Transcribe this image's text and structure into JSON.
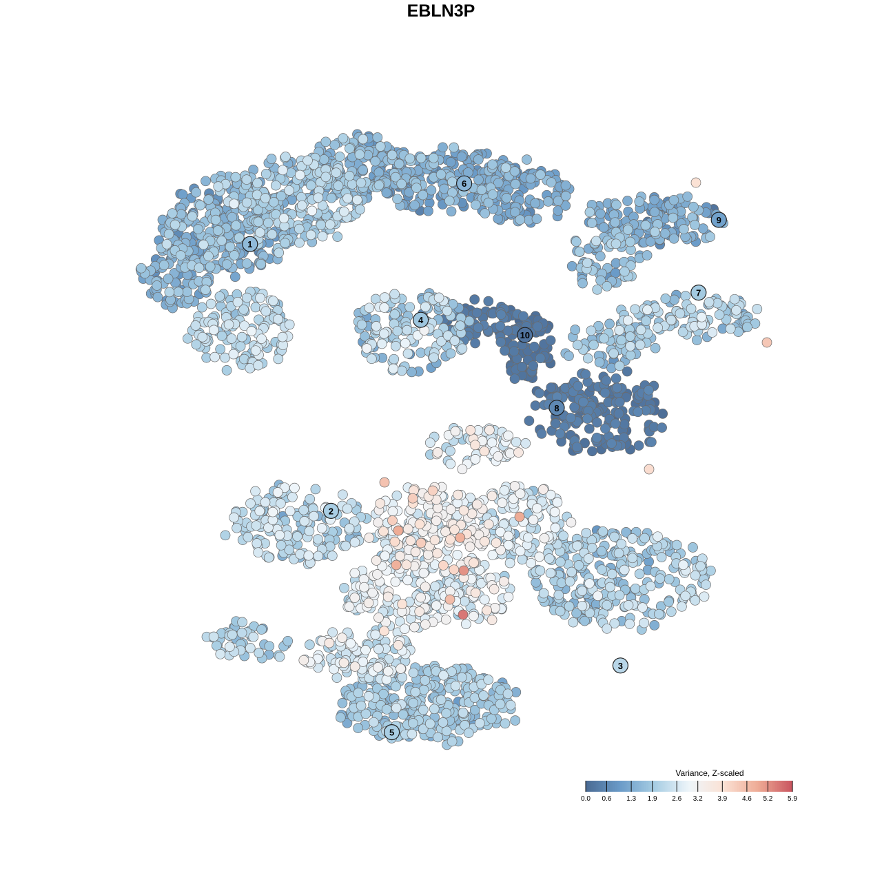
{
  "chart_data": {
    "type": "scatter",
    "title": "EBLN3P",
    "colorbar": {
      "title": "Variance, Z-scaled",
      "ticks": [
        "0.0",
        "0.6",
        "1.3",
        "1.9",
        "2.6",
        "3.2",
        "3.9",
        "4.6",
        "5.2",
        "5.9"
      ],
      "range": [
        0.0,
        5.9
      ],
      "colors": [
        "#4a6a93",
        "#6a9bc8",
        "#a7cde3",
        "#eef5fa",
        "#fbe1d4",
        "#eeab95",
        "#c9545f"
      ],
      "placement": "bottom-right"
    },
    "clusters": [
      {
        "label": "1",
        "x": -6.6,
        "y": 6.2,
        "value": 1.6
      },
      {
        "label": "2",
        "x": -3.8,
        "y": -2.6,
        "value": 2.0
      },
      {
        "label": "3",
        "x": 6.2,
        "y": -7.7,
        "value": 2.2
      },
      {
        "label": "4",
        "x": -0.7,
        "y": 3.7,
        "value": 1.8
      },
      {
        "label": "5",
        "x": -1.7,
        "y": -9.9,
        "value": 2.0
      },
      {
        "label": "6",
        "x": 0.8,
        "y": 8.2,
        "value": 1.5
      },
      {
        "label": "7",
        "x": 8.9,
        "y": 4.6,
        "value": 1.9
      },
      {
        "label": "8",
        "x": 4.0,
        "y": 0.8,
        "value": 0.6
      },
      {
        "label": "9",
        "x": 9.6,
        "y": 7.0,
        "value": 1.1
      },
      {
        "label": "10",
        "x": 2.9,
        "y": 3.2,
        "value": 0.2
      }
    ],
    "axes_visible": false,
    "grid": false
  }
}
